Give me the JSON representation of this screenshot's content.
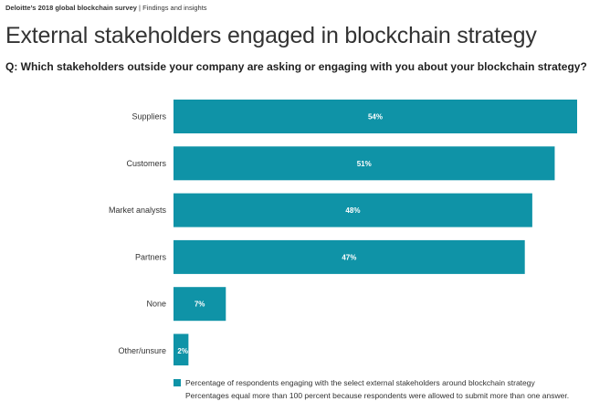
{
  "header": {
    "source_title": "Deloitte’s 2018 global blockchain survey",
    "source_sep": "|",
    "source_section": "Findings and insights",
    "title": "External stakeholders engaged in blockchain strategy",
    "question": "Q: Which stakeholders outside your company are asking or engaging with you about your blockchain strategy?"
  },
  "chart_data": {
    "type": "bar",
    "orientation": "horizontal",
    "categories": [
      "Suppliers",
      "Customers",
      "Market analysts",
      "Partners",
      "None",
      "Other/unsure"
    ],
    "series": [
      {
        "name": "Percentage of respondents engaging with the select external stakeholders around blockchain strategy",
        "values": [
          54,
          51,
          48,
          47,
          7,
          2
        ],
        "labels": [
          "54%",
          "51%",
          "48%",
          "47%",
          "7%",
          "2%"
        ]
      }
    ],
    "xlim": [
      0,
      54
    ],
    "grid": false,
    "legend_position": "bottom",
    "note": "Percentages equal more than 100 percent because respondents were allowed to submit more than one answer.",
    "colors": {
      "bar": "#0f93a7",
      "label": "#ffffff"
    }
  }
}
